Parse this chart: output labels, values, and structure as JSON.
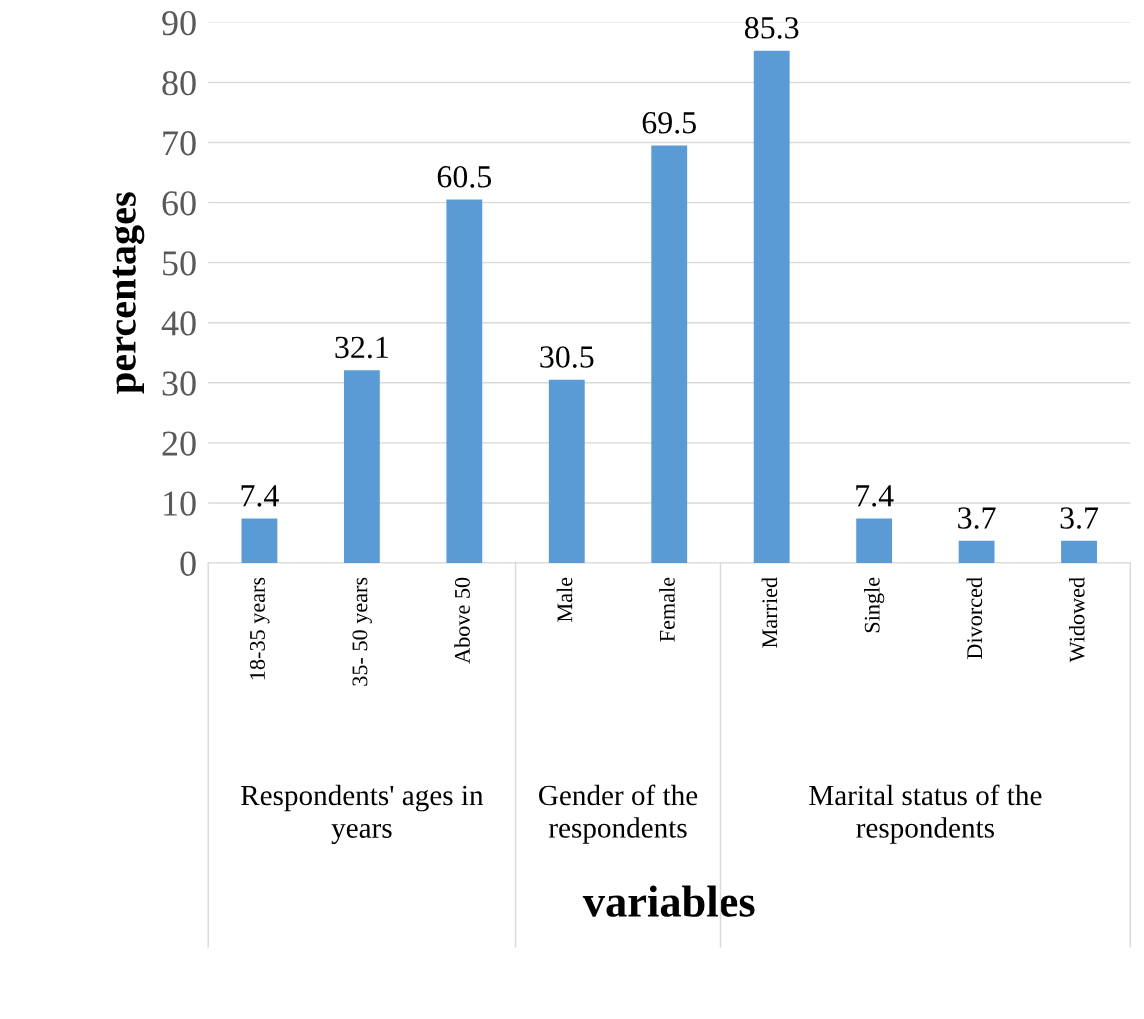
{
  "chart_data": {
    "type": "bar",
    "categories": [
      "18-35 years",
      "35- 50 years",
      "Above 50",
      "Male",
      "Female",
      "Married",
      "Single",
      "Divorced",
      "Widowed"
    ],
    "values": [
      7.4,
      32.1,
      60.5,
      30.5,
      69.5,
      85.3,
      7.4,
      3.7,
      3.7
    ],
    "color": "#5b9bd5",
    "ylim": [
      0,
      90
    ],
    "yticks": [
      0,
      10,
      20,
      30,
      40,
      50,
      60,
      70,
      80,
      90
    ],
    "ylabel": "percentages",
    "xlabel": "variables",
    "annotations": [
      "Respondents' ages in years",
      "Gender of the respondents",
      "Marital status of the respondents"
    ],
    "data_labels": true,
    "grid": "y"
  }
}
